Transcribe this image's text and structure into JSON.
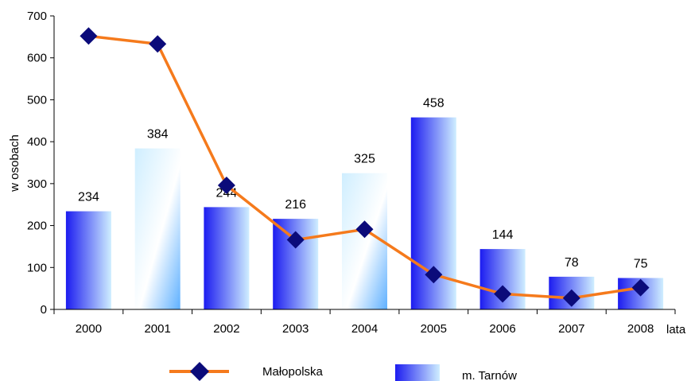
{
  "chart_data": {
    "type": "bar",
    "categories": [
      "2000",
      "2001",
      "2002",
      "2003",
      "2004",
      "2005",
      "2006",
      "2007",
      "2008"
    ],
    "series": [
      {
        "name": "m. Tarnów",
        "type": "bar",
        "values": [
          234,
          384,
          244,
          216,
          325,
          458,
          144,
          78,
          75
        ],
        "data_labels": [
          "234",
          "384",
          "244",
          "216",
          "325",
          "458",
          "144",
          "78",
          "75"
        ],
        "color_start": "#1c1cf0",
        "color_end": "#cfeeff"
      },
      {
        "name": "Małopolska",
        "type": "line",
        "values": [
          652,
          633,
          296,
          166,
          191,
          83,
          37,
          27,
          52
        ],
        "line_color": "#f57a1c",
        "marker_color": "#0b0b7a"
      }
    ],
    "ylabel": "w osobach",
    "xlabel": "lata",
    "ylim": [
      0,
      700
    ],
    "yticks": [
      "0",
      "100",
      "200",
      "300",
      "400",
      "500",
      "600",
      "700"
    ],
    "grid": false,
    "legend_position": "bottom"
  }
}
